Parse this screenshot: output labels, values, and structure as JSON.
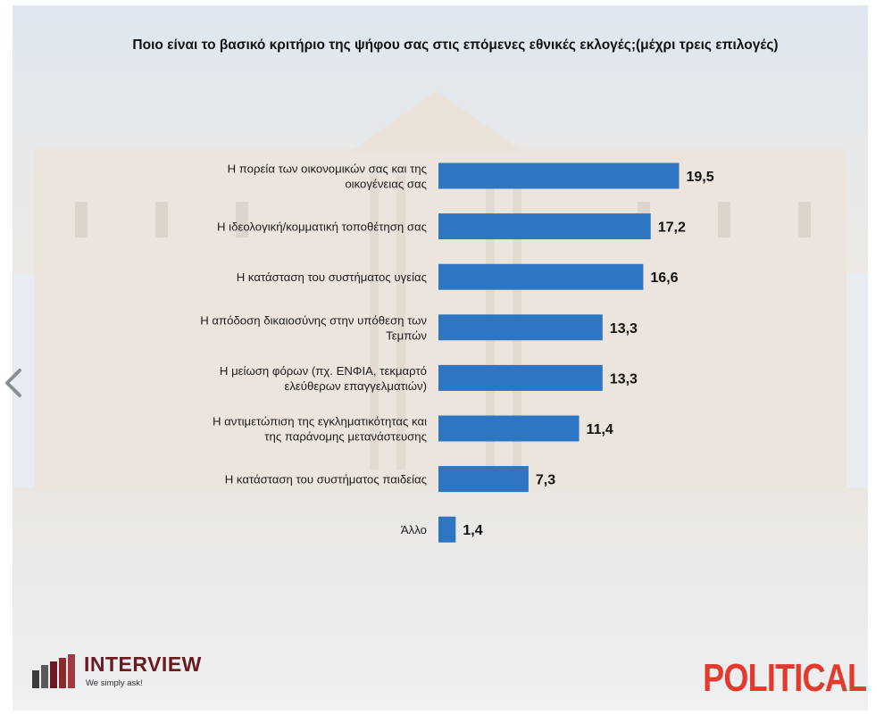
{
  "chart_data": {
    "type": "bar",
    "orientation": "horizontal",
    "title": "Ποιο είναι το βασικό κριτήριο της ψήφου σας στις επόμενες εθνικές εκλογές;(μέχρι τρεις επιλογές)",
    "categories": [
      [
        "Η πορεία των οικονομικών σας και της",
        "οικογένειας σας"
      ],
      [
        "Η ιδεολογική/κομματική τοποθέτηση σας"
      ],
      [
        "Η κατάσταση του συστήματος υγείας"
      ],
      [
        "Η απόδοση δικαιοσύνης στην υπόθεση των",
        "Τεμπών"
      ],
      [
        "Η μείωση φόρων (πχ. ΕΝΦΙΑ, τεκμαρτό",
        "ελεύθερων επαγγελματιών)"
      ],
      [
        "Η αντιμετώπιση της εγκληματικότητας και",
        "της παράνομης μετανάστευσης"
      ],
      [
        "Η κατάσταση του συστήματος παιδείας"
      ],
      [
        "Άλλο"
      ]
    ],
    "values": [
      19.5,
      17.2,
      16.6,
      13.3,
      13.3,
      11.4,
      7.3,
      1.4
    ],
    "value_labels": [
      "19,5",
      "17,2",
      "16,6",
      "13,3",
      "13,3",
      "11,4",
      "7,3",
      "1,4"
    ],
    "bar_color": "#2f76c2",
    "xlim": [
      0,
      25
    ],
    "grid": false,
    "legend": "none"
  },
  "branding": {
    "left_logo_name": "INTERVIEW",
    "left_logo_tagline": "We simply ask!",
    "right_logo_name": "POLITICAL"
  },
  "navigation": {
    "prev_icon": "chevron-left-icon"
  },
  "colors": {
    "interview": "#6b1a1f",
    "political": "#e23a2c"
  }
}
